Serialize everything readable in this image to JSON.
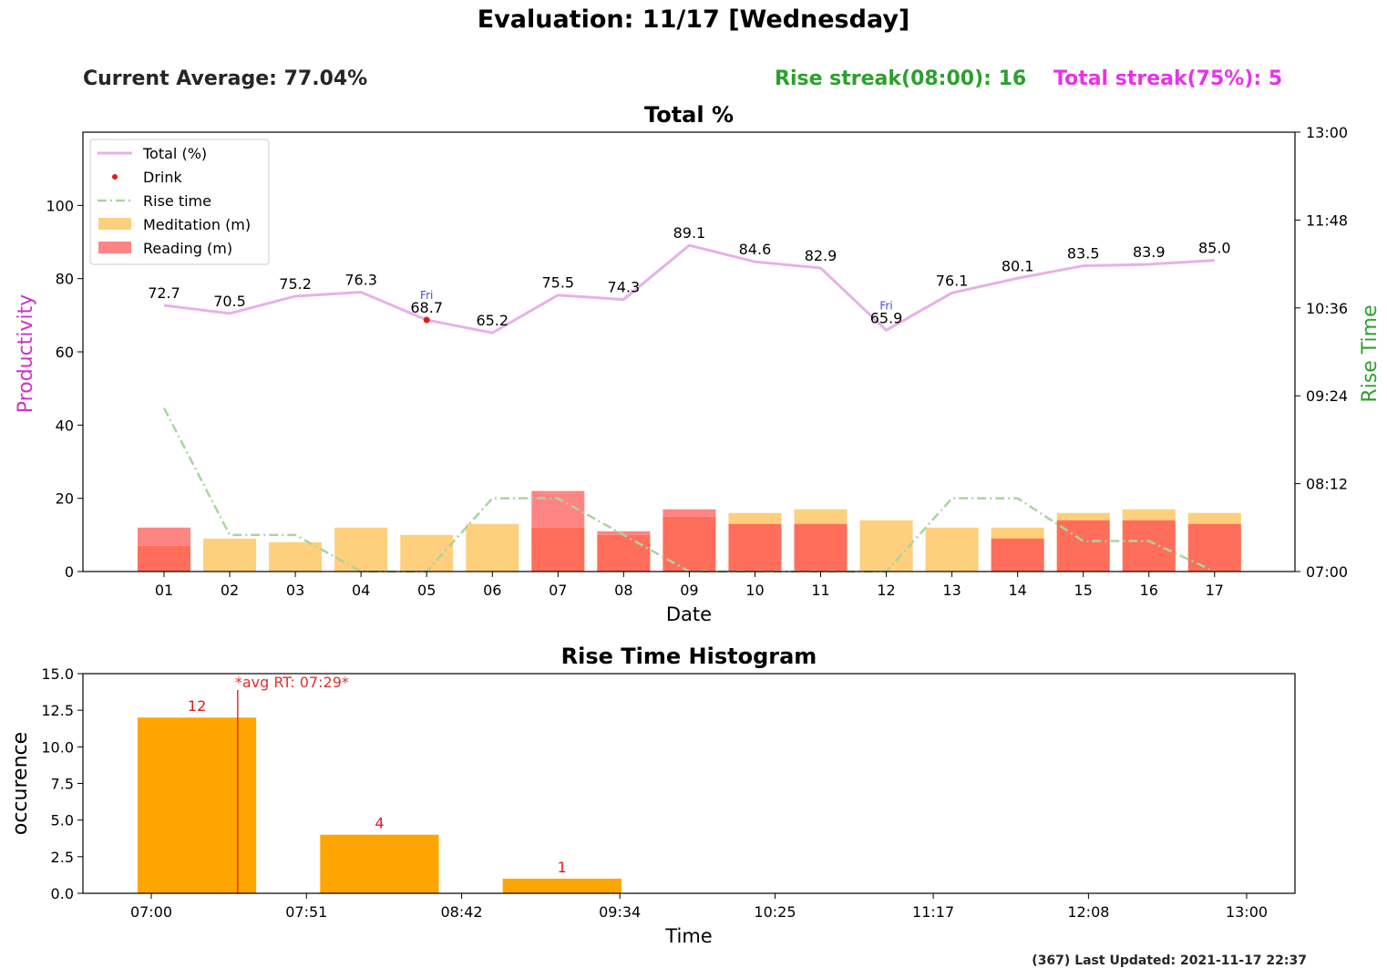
{
  "header": {
    "title": "Evaluation: 11/17 [Wednesday]",
    "current_average": "Current Average: 77.04%",
    "rise_streak": "Rise streak(08:00): 16",
    "total_streak": "Total streak(75%): 5"
  },
  "footer": {
    "last_updated": "(367) Last Updated: 2021-11-17 22:37"
  },
  "colors": {
    "total_line": "#e8b0e8",
    "drink": "#e41a1c",
    "rise_line": "#aad4a0",
    "meditation": "#fecf7d",
    "reading": "#ff6e5a",
    "reading_light": "#ff8484",
    "hist_bar": "#ffa500",
    "avg_line": "#e03030",
    "productivity_label": "#cc33cc",
    "rise_label": "#2ca02c"
  },
  "chart_data": [
    {
      "type": "bar",
      "title": "Total %",
      "xlabel": "Date",
      "ylabel": "Productivity",
      "y2label": "Rise Time",
      "ylim": [
        0,
        120
      ],
      "yticks": [
        0,
        20,
        40,
        60,
        80,
        100
      ],
      "y2ticks": [
        "07:00",
        "08:12",
        "09:24",
        "10:36",
        "11:48",
        "13:00"
      ],
      "y2lim_minutes": [
        420,
        780
      ],
      "legend_position": "top-left",
      "legend": [
        "Total (%)",
        "Drink",
        "Rise time",
        "Meditation (m)",
        "Reading (m)"
      ],
      "categories": [
        "01",
        "02",
        "03",
        "04",
        "05",
        "06",
        "07",
        "08",
        "09",
        "10",
        "11",
        "12",
        "13",
        "14",
        "15",
        "16",
        "17"
      ],
      "series": [
        {
          "name": "Total (%)",
          "type": "line",
          "values": [
            72.7,
            70.5,
            75.2,
            76.3,
            68.7,
            65.2,
            75.5,
            74.3,
            89.1,
            84.6,
            82.9,
            65.9,
            76.1,
            80.1,
            83.5,
            83.9,
            85.0
          ],
          "labels": [
            "72.7",
            "70.5",
            "75.2",
            "76.3",
            "68.7",
            "65.2",
            "75.5",
            "74.3",
            "89.1",
            "84.6",
            "82.9",
            "65.9",
            "76.1",
            "80.1",
            "83.5",
            "83.9",
            "85.0"
          ]
        },
        {
          "name": "Meditation (m)",
          "type": "bar",
          "values": [
            7,
            9,
            8,
            12,
            10,
            13,
            12,
            10,
            15,
            16,
            17,
            14,
            12,
            12,
            16,
            17,
            16
          ]
        },
        {
          "name": "Reading (m)",
          "type": "bar",
          "values": [
            12,
            0,
            0,
            0,
            0,
            0,
            22,
            11,
            17,
            13,
            13,
            0,
            0,
            9,
            14,
            14,
            13
          ]
        },
        {
          "name": "Rise time",
          "type": "line",
          "axis": "y2",
          "unit": "time",
          "values": [
            "09:14",
            "07:30",
            "07:30",
            "07:00",
            "07:00",
            "08:00",
            "08:00",
            "07:30",
            "07:00",
            "07:00",
            "07:00",
            "07:00",
            "08:00",
            "08:00",
            "07:25",
            "07:25",
            "07:00"
          ]
        },
        {
          "name": "Drink",
          "type": "scatter",
          "points": [
            {
              "category": "05",
              "value": 68.7
            }
          ]
        }
      ],
      "annotations": [
        {
          "category": "05",
          "text": "Fri"
        },
        {
          "category": "12",
          "text": "Fri"
        }
      ]
    },
    {
      "type": "bar",
      "title": "Rise Time Histogram",
      "xlabel": "Time",
      "ylabel": "occurence",
      "ylim": [
        0,
        15
      ],
      "yticks": [
        "0.0",
        "2.5",
        "5.0",
        "7.5",
        "10.0",
        "12.5",
        "15.0"
      ],
      "xticks": [
        "07:00",
        "07:51",
        "08:42",
        "09:34",
        "10:25",
        "11:17",
        "12:08",
        "13:00"
      ],
      "bins": [
        {
          "start": "07:00",
          "end": "07:30",
          "count": 12
        },
        {
          "start": "07:60",
          "end": "08:30",
          "count": 4
        },
        {
          "start": "08:60",
          "end": "09:30",
          "count": 1
        }
      ],
      "bar_labels": [
        "12",
        "4",
        "1"
      ],
      "avg_line_time": "07:29",
      "avg_label": "*avg RT: 07:29*"
    }
  ]
}
